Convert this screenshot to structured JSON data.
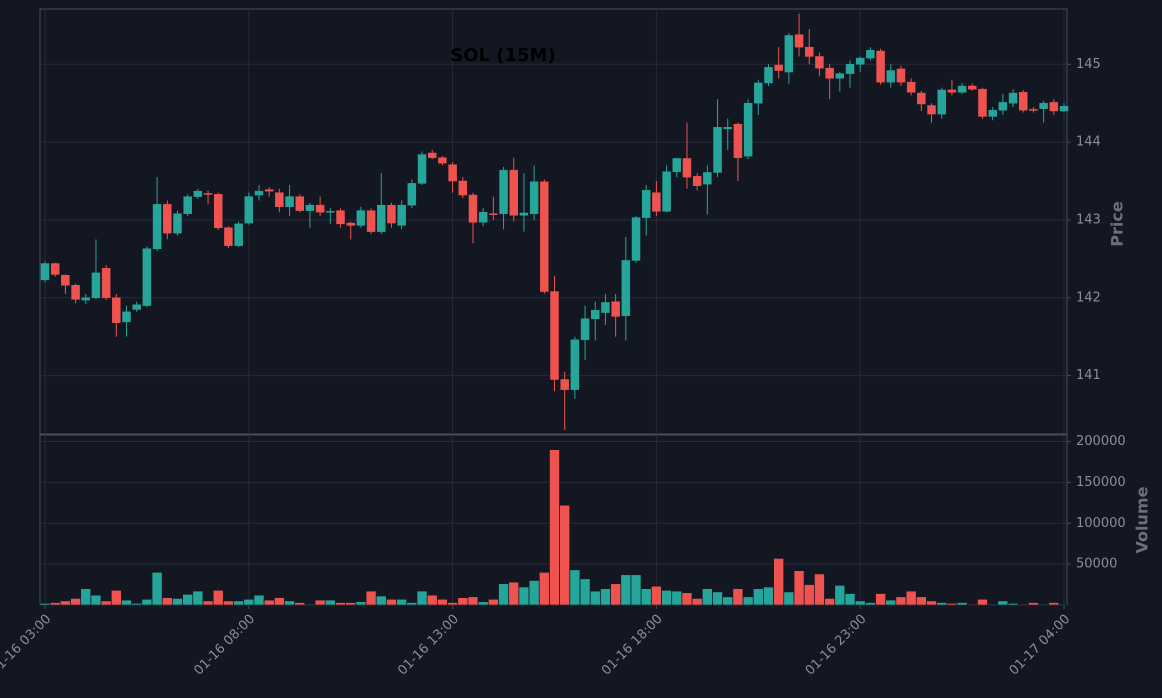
{
  "chart_data": {
    "type": "candlestick",
    "title": "SOL (15M)",
    "ylabel": "Price",
    "volume_label": "Volume",
    "categories": [
      "01-16 03:00",
      null,
      null,
      null,
      null,
      null,
      null,
      null,
      null,
      null,
      null,
      null,
      null,
      null,
      null,
      null,
      null,
      null,
      null,
      null,
      "01-16 08:00",
      null,
      null,
      null,
      null,
      null,
      null,
      null,
      null,
      null,
      null,
      null,
      null,
      null,
      null,
      null,
      null,
      null,
      null,
      null,
      "01-16 13:00",
      null,
      null,
      null,
      null,
      null,
      null,
      null,
      null,
      null,
      null,
      null,
      null,
      null,
      null,
      null,
      null,
      null,
      null,
      null,
      "01-16 18:00",
      null,
      null,
      null,
      null,
      null,
      null,
      null,
      null,
      null,
      null,
      null,
      null,
      null,
      null,
      null,
      null,
      null,
      null,
      null,
      "01-16 23:00",
      null,
      null,
      null,
      null,
      null,
      null,
      null,
      null,
      null,
      null,
      null,
      null,
      null,
      null,
      null,
      null,
      null,
      null,
      null,
      "01-17 04:00"
    ],
    "open": [
      142.23,
      142.44,
      142.29,
      142.16,
      141.97,
      142.0,
      142.38,
      142.0,
      141.69,
      141.85,
      141.9,
      142.63,
      143.2,
      142.83,
      143.08,
      143.3,
      143.34,
      143.33,
      142.9,
      142.67,
      142.96,
      143.32,
      143.39,
      143.35,
      143.17,
      143.3,
      143.12,
      143.19,
      143.1,
      143.12,
      142.96,
      142.93,
      143.12,
      142.85,
      143.19,
      142.93,
      143.19,
      143.47,
      143.86,
      143.8,
      143.71,
      143.5,
      143.32,
      142.97,
      143.08,
      143.08,
      143.64,
      143.06,
      143.08,
      143.49,
      142.08,
      140.95,
      140.82,
      141.46,
      141.73,
      141.81,
      141.95,
      141.77,
      142.48,
      143.03,
      143.35,
      143.11,
      143.62,
      143.79,
      143.56,
      143.46,
      143.61,
      144.17,
      144.23,
      143.82,
      144.5,
      144.76,
      144.99,
      144.9,
      145.38,
      145.22,
      145.1,
      144.95,
      144.82,
      144.88,
      145.0,
      145.08,
      145.17,
      144.77,
      144.94,
      144.77,
      144.63,
      144.47,
      144.36,
      144.67,
      144.64,
      144.72,
      144.68,
      144.33,
      144.41,
      144.5,
      144.64,
      144.42,
      144.43,
      144.51,
      144.4
    ],
    "high": [
      142.47,
      142.45,
      142.3,
      142.18,
      142.05,
      142.75,
      142.42,
      142.05,
      141.9,
      141.95,
      142.66,
      143.55,
      143.25,
      143.12,
      143.33,
      143.4,
      143.38,
      143.35,
      142.92,
      142.98,
      143.35,
      143.45,
      143.42,
      143.4,
      143.45,
      143.33,
      143.22,
      143.3,
      143.15,
      143.15,
      142.98,
      143.17,
      143.15,
      143.6,
      143.22,
      143.25,
      143.52,
      143.88,
      143.9,
      143.82,
      143.74,
      143.55,
      143.35,
      143.15,
      143.3,
      143.68,
      143.8,
      143.6,
      143.7,
      143.52,
      142.28,
      141.05,
      141.5,
      141.9,
      141.95,
      142.05,
      142.05,
      142.78,
      143.05,
      143.45,
      143.5,
      143.7,
      143.8,
      144.25,
      143.6,
      143.7,
      144.55,
      144.3,
      144.25,
      144.55,
      144.8,
      145.0,
      145.22,
      145.4,
      145.65,
      145.45,
      145.15,
      145.0,
      144.9,
      145.05,
      145.1,
      145.22,
      145.2,
      145.0,
      144.98,
      144.82,
      144.66,
      144.5,
      144.7,
      144.8,
      144.76,
      144.75,
      144.7,
      144.45,
      144.62,
      144.68,
      144.67,
      144.45,
      144.53,
      144.55,
      144.5
    ],
    "low": [
      142.2,
      142.27,
      142.05,
      141.93,
      141.92,
      141.98,
      141.97,
      141.5,
      141.5,
      141.82,
      141.88,
      142.6,
      142.75,
      142.8,
      143.05,
      143.27,
      143.2,
      142.87,
      142.64,
      142.65,
      142.94,
      143.25,
      143.3,
      143.1,
      143.05,
      143.1,
      142.9,
      143.05,
      142.95,
      142.9,
      142.75,
      142.9,
      142.82,
      142.82,
      142.9,
      142.88,
      143.15,
      143.45,
      143.78,
      143.7,
      143.35,
      143.28,
      142.7,
      142.92,
      143.0,
      142.88,
      142.98,
      142.85,
      143.0,
      142.05,
      140.8,
      140.3,
      140.7,
      141.2,
      141.45,
      141.65,
      141.5,
      141.45,
      142.45,
      142.8,
      143.05,
      143.1,
      143.55,
      143.4,
      143.38,
      143.07,
      143.55,
      143.9,
      143.5,
      143.78,
      144.35,
      144.72,
      144.82,
      144.75,
      145.1,
      145.0,
      144.85,
      144.55,
      144.65,
      144.7,
      144.9,
      145.05,
      144.74,
      144.7,
      144.72,
      144.6,
      144.4,
      144.25,
      144.3,
      144.6,
      144.62,
      144.66,
      144.3,
      144.28,
      144.35,
      144.45,
      144.38,
      144.38,
      144.25,
      144.35,
      144.38
    ],
    "close": [
      142.44,
      142.3,
      142.16,
      141.98,
      142.0,
      142.32,
      142.0,
      141.68,
      141.82,
      141.91,
      142.63,
      143.2,
      142.83,
      143.08,
      143.3,
      143.37,
      143.33,
      142.9,
      142.67,
      142.95,
      143.3,
      143.37,
      143.37,
      143.17,
      143.3,
      143.12,
      143.19,
      143.1,
      143.11,
      142.95,
      142.93,
      143.12,
      142.85,
      143.19,
      142.96,
      143.19,
      143.47,
      143.84,
      143.8,
      143.73,
      143.5,
      143.32,
      142.97,
      143.1,
      143.07,
      143.64,
      143.06,
      143.09,
      143.49,
      142.08,
      140.95,
      140.82,
      141.46,
      141.73,
      141.84,
      141.94,
      141.76,
      142.48,
      143.03,
      143.38,
      143.11,
      143.62,
      143.79,
      143.55,
      143.44,
      143.61,
      144.19,
      144.19,
      143.8,
      144.5,
      144.76,
      144.96,
      144.92,
      145.37,
      145.22,
      145.1,
      144.95,
      144.82,
      144.88,
      145.0,
      145.08,
      145.18,
      144.77,
      144.92,
      144.77,
      144.64,
      144.49,
      144.36,
      144.67,
      144.64,
      144.72,
      144.68,
      144.33,
      144.41,
      144.51,
      144.63,
      144.41,
      144.41,
      144.5,
      144.4,
      144.46
    ],
    "volume": [
      2000,
      3000,
      5000,
      8000,
      20000,
      12000,
      5000,
      18000,
      6000,
      2000,
      7000,
      40000,
      9000,
      8000,
      13000,
      17000,
      5000,
      18000,
      5000,
      5000,
      7000,
      12000,
      6000,
      9000,
      5000,
      3000,
      1000,
      6000,
      6000,
      3000,
      3000,
      4000,
      17000,
      11000,
      7000,
      7000,
      3000,
      17000,
      12000,
      7000,
      3000,
      9000,
      10000,
      4000,
      7000,
      26000,
      28000,
      22000,
      30000,
      40000,
      190000,
      122000,
      43000,
      32000,
      17000,
      20000,
      26000,
      37000,
      37000,
      20000,
      23000,
      18000,
      17000,
      15000,
      8000,
      20000,
      16000,
      10000,
      20000,
      10000,
      20000,
      22000,
      57000,
      16000,
      42000,
      25000,
      38000,
      8000,
      24000,
      14000,
      5000,
      3000,
      14000,
      6000,
      10000,
      17000,
      10000,
      5000,
      3000,
      2000,
      3000,
      1000,
      7000,
      1000,
      5000,
      2000,
      1000,
      3000,
      1000,
      3000,
      1000
    ],
    "ylim": [
      140.25,
      145.71
    ],
    "yticks": [
      141,
      142,
      143,
      144,
      145
    ],
    "volume_ylim": [
      0,
      208000
    ],
    "volume_yticks": [
      50000,
      100000,
      150000,
      200000
    ],
    "up_color": "#26a69a",
    "down_color": "#ef5350",
    "grid": true
  }
}
